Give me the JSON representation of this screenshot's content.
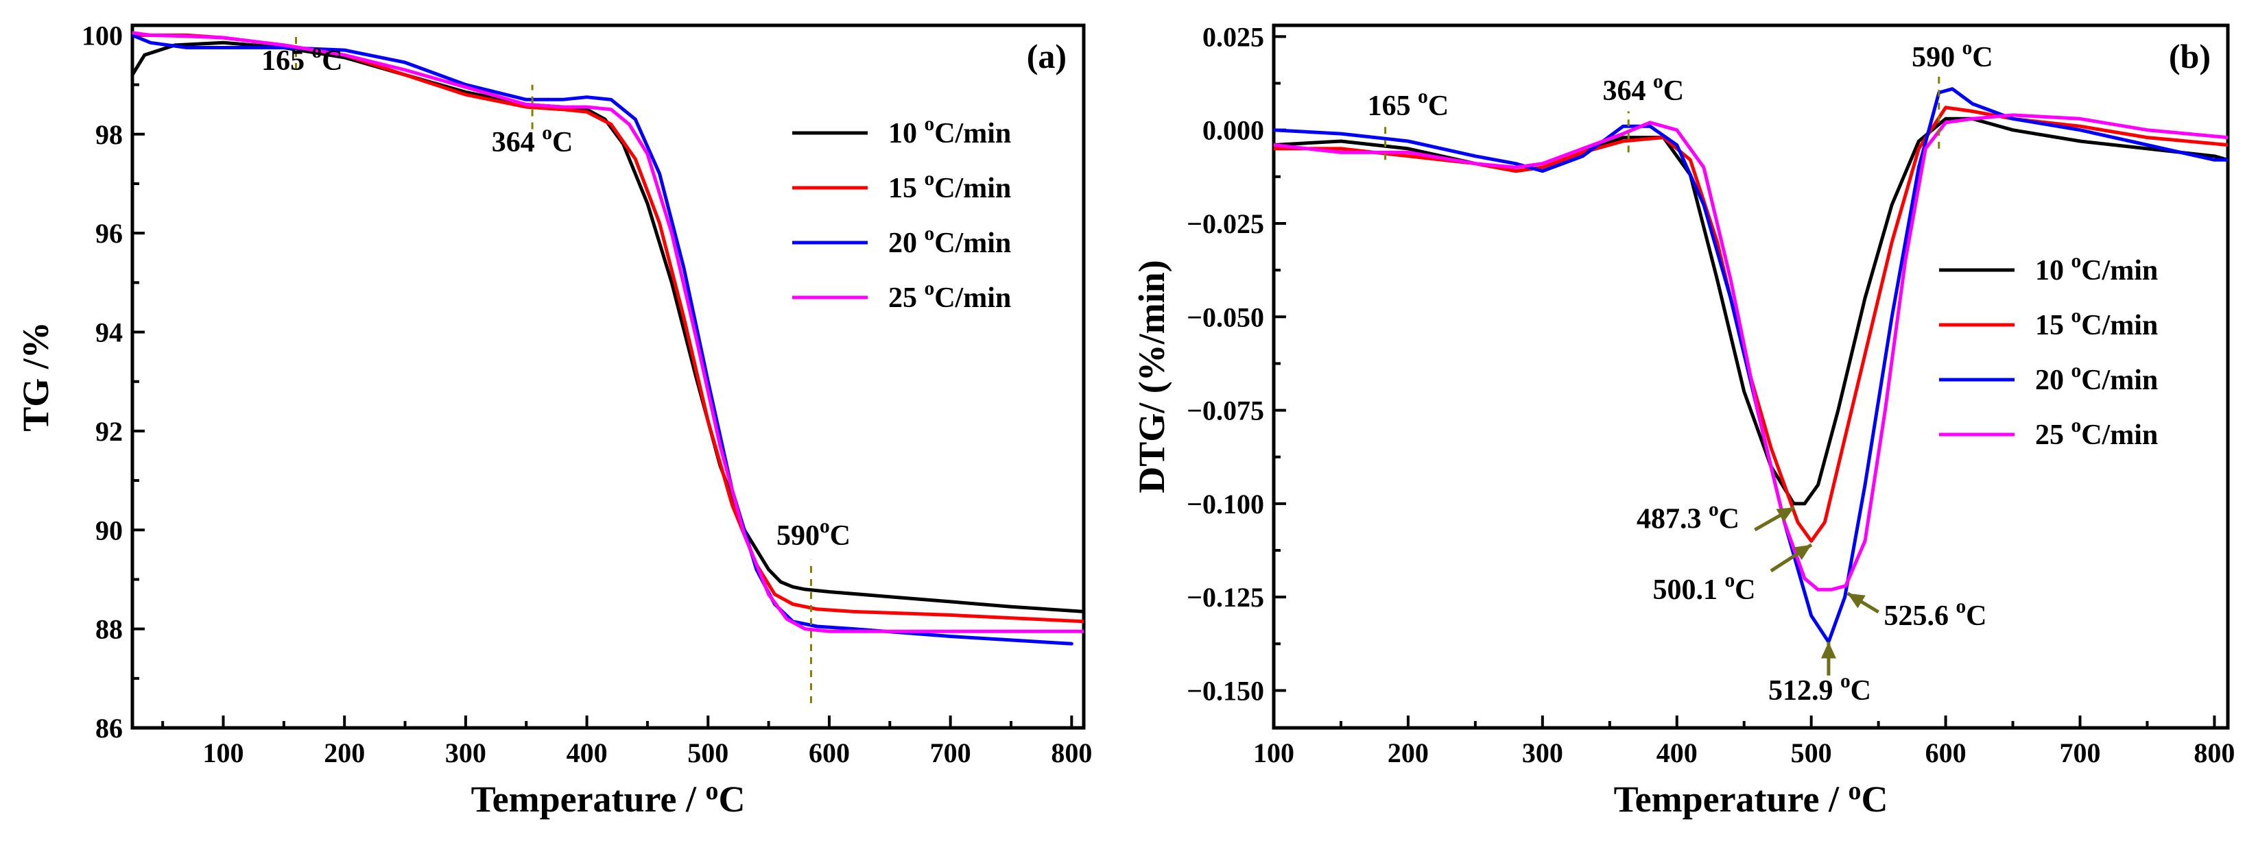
{
  "chart_data": [
    {
      "panel": "(a)",
      "type": "line",
      "xlabel_main": "Temperature / ",
      "xlabel_sup": "o",
      "xlabel_tail": "C",
      "ylabel": "TG /%",
      "xlim": [
        25,
        810
      ],
      "ylim": [
        86,
        100.2
      ],
      "xticks": [
        100,
        200,
        300,
        400,
        500,
        600,
        700,
        800
      ],
      "yticks": [
        86,
        88,
        90,
        92,
        94,
        96,
        98,
        100
      ],
      "legend": "right",
      "series": [
        {
          "name": "10 oC/min",
          "label_num": "10 ",
          "label_sup": "o",
          "label_tail": "C/min",
          "color": "#000000",
          "x": [
            25,
            35,
            60,
            100,
            150,
            200,
            250,
            300,
            350,
            380,
            400,
            415,
            430,
            450,
            470,
            490,
            510,
            530,
            550,
            560,
            570,
            580,
            600,
            650,
            700,
            750,
            810
          ],
          "y": [
            99.2,
            99.6,
            99.8,
            99.85,
            99.75,
            99.55,
            99.2,
            98.85,
            98.6,
            98.55,
            98.5,
            98.3,
            97.8,
            96.6,
            95.0,
            93.1,
            91.3,
            90.0,
            89.2,
            88.95,
            88.85,
            88.8,
            88.75,
            88.65,
            88.55,
            88.45,
            88.35
          ]
        },
        {
          "name": "15 oC/min",
          "label_num": "15 ",
          "label_sup": "o",
          "label_tail": "C/min",
          "color": "#ff0000",
          "x": [
            25,
            40,
            70,
            100,
            150,
            200,
            250,
            300,
            350,
            380,
            400,
            420,
            440,
            460,
            480,
            500,
            520,
            540,
            555,
            570,
            590,
            620,
            700,
            810
          ],
          "y": [
            100.0,
            100.0,
            100.0,
            99.95,
            99.8,
            99.6,
            99.2,
            98.8,
            98.55,
            98.5,
            98.45,
            98.2,
            97.5,
            96.2,
            94.3,
            92.2,
            90.5,
            89.3,
            88.7,
            88.5,
            88.4,
            88.35,
            88.28,
            88.15
          ]
        },
        {
          "name": "20 oC/min",
          "label_num": "20 ",
          "label_sup": "o",
          "label_tail": "C/min",
          "color": "#0000ff",
          "x": [
            25,
            40,
            70,
            100,
            150,
            200,
            250,
            300,
            350,
            380,
            400,
            420,
            440,
            460,
            480,
            500,
            520,
            540,
            555,
            570,
            590,
            620,
            700,
            800
          ],
          "y": [
            100.0,
            99.85,
            99.75,
            99.75,
            99.75,
            99.7,
            99.45,
            99.0,
            98.7,
            98.7,
            98.75,
            98.7,
            98.3,
            97.2,
            95.3,
            93.0,
            90.8,
            89.2,
            88.5,
            88.15,
            88.05,
            88.0,
            87.85,
            87.7
          ]
        },
        {
          "name": "25 oC/min",
          "label_num": "25 ",
          "label_sup": "o",
          "label_tail": "C/min",
          "color": "#ff00ff",
          "x": [
            25,
            40,
            70,
            100,
            150,
            200,
            250,
            300,
            350,
            380,
            400,
            420,
            435,
            450,
            470,
            490,
            510,
            530,
            550,
            565,
            580,
            600,
            650,
            700,
            810
          ],
          "y": [
            100.05,
            100.0,
            99.98,
            99.95,
            99.8,
            99.6,
            99.3,
            98.95,
            98.6,
            98.55,
            98.55,
            98.5,
            98.2,
            97.6,
            96.0,
            93.9,
            91.7,
            89.9,
            88.7,
            88.2,
            88.0,
            87.95,
            87.95,
            87.95,
            87.95
          ]
        }
      ],
      "annotations": [
        {
          "line_x": 160,
          "line_y": [
            99.3,
            100.0
          ],
          "text_num": "165 ",
          "text_sup": "o",
          "text_tail": "C",
          "tx": 165,
          "ty": 99.3
        },
        {
          "line_x": 355,
          "line_y": [
            98.1,
            99.0
          ],
          "text_num": "364 ",
          "text_sup": "o",
          "text_tail": "C",
          "tx": 355,
          "ty": 97.65
        },
        {
          "line_x": 585,
          "line_y": [
            86.5,
            89.4
          ],
          "text_num": "590",
          "text_sup": "o",
          "text_tail": "C",
          "tx": 587,
          "ty": 89.7
        }
      ]
    },
    {
      "panel": "(b)",
      "type": "line",
      "xlabel_main": "Temperature / ",
      "xlabel_sup": "o",
      "xlabel_tail": "C",
      "ylabel": "DTG/ (%/min)",
      "xlim": [
        100,
        810
      ],
      "ylim": [
        -0.16,
        0.028
      ],
      "xticks": [
        100,
        200,
        300,
        400,
        500,
        600,
        700,
        800
      ],
      "yticks": [
        -0.15,
        -0.125,
        -0.1,
        -0.075,
        -0.05,
        -0.025,
        0.0,
        0.025
      ],
      "ytick_labels": [
        "−0.150",
        "−0.125",
        "−0.100",
        "−0.075",
        "−0.050",
        "−0.025",
        "0.000",
        "0.025"
      ],
      "legend": "right",
      "series": [
        {
          "name": "10 oC/min",
          "label_num": "10 ",
          "label_sup": "o",
          "label_tail": "C/min",
          "color": "#000000",
          "x": [
            100,
            150,
            200,
            250,
            280,
            300,
            330,
            360,
            390,
            410,
            430,
            450,
            470,
            487,
            495,
            505,
            520,
            540,
            560,
            580,
            600,
            620,
            650,
            700,
            750,
            800,
            810
          ],
          "y": [
            -0.004,
            -0.003,
            -0.005,
            -0.009,
            -0.011,
            -0.01,
            -0.006,
            -0.002,
            -0.002,
            -0.012,
            -0.04,
            -0.07,
            -0.09,
            -0.1,
            -0.1,
            -0.095,
            -0.075,
            -0.045,
            -0.02,
            -0.003,
            0.003,
            0.003,
            0.0,
            -0.003,
            -0.005,
            -0.007,
            -0.008
          ]
        },
        {
          "name": "15 oC/min",
          "label_num": "15 ",
          "label_sup": "o",
          "label_tail": "C/min",
          "color": "#ff0000",
          "x": [
            100,
            150,
            200,
            250,
            280,
            300,
            330,
            360,
            390,
            410,
            430,
            450,
            470,
            490,
            500,
            510,
            520,
            540,
            560,
            580,
            600,
            620,
            650,
            700,
            750,
            810
          ],
          "y": [
            -0.005,
            -0.005,
            -0.007,
            -0.009,
            -0.011,
            -0.01,
            -0.006,
            -0.003,
            -0.002,
            -0.008,
            -0.03,
            -0.06,
            -0.085,
            -0.105,
            -0.11,
            -0.105,
            -0.09,
            -0.06,
            -0.03,
            -0.005,
            0.006,
            0.005,
            0.003,
            0.001,
            -0.002,
            -0.004
          ]
        },
        {
          "name": "20 oC/min",
          "label_num": "20 ",
          "label_sup": "o",
          "label_tail": "C/min",
          "color": "#0000ff",
          "x": [
            100,
            150,
            200,
            250,
            280,
            300,
            330,
            360,
            380,
            400,
            420,
            440,
            460,
            480,
            500,
            512.9,
            525,
            540,
            560,
            580,
            595,
            605,
            620,
            650,
            700,
            750,
            800,
            810
          ],
          "y": [
            0.0,
            -0.001,
            -0.003,
            -0.007,
            -0.009,
            -0.011,
            -0.007,
            0.001,
            0.001,
            -0.004,
            -0.02,
            -0.045,
            -0.075,
            -0.105,
            -0.13,
            -0.137,
            -0.125,
            -0.095,
            -0.05,
            -0.01,
            0.01,
            0.011,
            0.007,
            0.003,
            0.0,
            -0.004,
            -0.008,
            -0.008
          ]
        },
        {
          "name": "25 oC/min",
          "label_num": "25 ",
          "label_sup": "o",
          "label_tail": "C/min",
          "color": "#ff00ff",
          "x": [
            100,
            150,
            200,
            250,
            280,
            300,
            330,
            360,
            380,
            400,
            420,
            440,
            460,
            480,
            495,
            505,
            515,
            525.6,
            540,
            555,
            570,
            585,
            600,
            620,
            650,
            700,
            750,
            810
          ],
          "y": [
            -0.004,
            -0.006,
            -0.006,
            -0.009,
            -0.01,
            -0.009,
            -0.005,
            -0.001,
            0.002,
            0.0,
            -0.01,
            -0.04,
            -0.075,
            -0.105,
            -0.12,
            -0.123,
            -0.123,
            -0.122,
            -0.11,
            -0.075,
            -0.035,
            -0.005,
            0.002,
            0.003,
            0.004,
            0.003,
            0.0,
            -0.002
          ]
        }
      ],
      "annotations": [
        {
          "line_x": 183,
          "line_y": [
            -0.008,
            0.001
          ],
          "text_num": "165 ",
          "text_sup": "o",
          "text_tail": "C",
          "tx": 200,
          "ty": 0.004
        },
        {
          "line_x": 364,
          "line_y": [
            -0.006,
            0.005
          ],
          "text_num": "364 ",
          "text_sup": "o",
          "text_tail": "C",
          "tx": 375,
          "ty": 0.008
        },
        {
          "line_x": 595,
          "line_y": [
            -0.005,
            0.015
          ],
          "text_num": "590 ",
          "text_sup": "o",
          "text_tail": "C",
          "tx": 605,
          "ty": 0.017
        }
      ],
      "arrows": [
        {
          "from_x": 458,
          "from_y": -0.107,
          "to_x": 487.3,
          "to_y": -0.101,
          "text_num": "487.3 ",
          "text_sup": "o",
          "text_tail": "C",
          "tx": 370,
          "ty": -0.1065
        },
        {
          "from_x": 470,
          "from_y": -0.118,
          "to_x": 500.1,
          "to_y": -0.111,
          "text_num": "500.1 ",
          "text_sup": "o",
          "text_tail": "C",
          "tx": 382,
          "ty": -0.1255
        },
        {
          "from_x": 512.9,
          "from_y": -0.146,
          "to_x": 512.9,
          "to_y": -0.137,
          "text_num": "512.9 ",
          "text_sup": "o",
          "text_tail": "C",
          "tx": 468,
          "ty": -0.1525
        },
        {
          "from_x": 550,
          "from_y": -0.129,
          "to_x": 527,
          "to_y": -0.124,
          "text_num": "525.6 ",
          "text_sup": "o",
          "text_tail": "C",
          "tx": 554,
          "ty": -0.1325
        }
      ]
    }
  ]
}
